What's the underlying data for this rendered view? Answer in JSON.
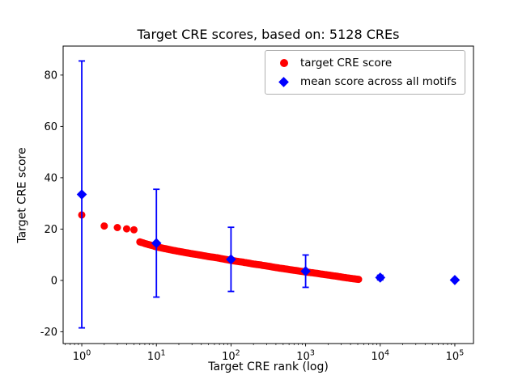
{
  "chart_data": {
    "type": "scatter",
    "title": "Target CRE scores, based on: 5128 CREs",
    "xlabel": "Target CRE rank (log)",
    "ylabel": "Target CRE score",
    "n_cres": 5128,
    "x_scale": "log",
    "xlim_log10": [
      -0.25,
      5.25
    ],
    "ylim": [
      -24.6,
      91.3
    ],
    "x_ticks_exponents": [
      0,
      1,
      2,
      3,
      4,
      5
    ],
    "y_ticks": [
      -20,
      0,
      20,
      40,
      60,
      80
    ],
    "grid": false,
    "legend_position": "upper right",
    "dense_interp_from_rank": 6,
    "series": [
      {
        "name": "target CRE score",
        "marker": "circle",
        "color": "#ff0000",
        "points": [
          [
            1,
            25.5
          ],
          [
            2,
            21.2
          ],
          [
            3,
            20.6
          ],
          [
            4,
            20.1
          ],
          [
            5,
            19.7
          ],
          [
            6,
            15.0
          ],
          [
            7,
            14.4
          ],
          [
            8,
            13.9
          ],
          [
            9,
            13.5
          ],
          [
            10,
            13.1
          ],
          [
            12,
            12.6
          ],
          [
            15,
            12.0
          ],
          [
            20,
            11.3
          ],
          [
            25,
            10.8
          ],
          [
            30,
            10.4
          ],
          [
            40,
            9.8
          ],
          [
            50,
            9.3
          ],
          [
            65,
            8.8
          ],
          [
            80,
            8.3
          ],
          [
            100,
            7.8
          ],
          [
            130,
            7.3
          ],
          [
            160,
            6.9
          ],
          [
            200,
            6.4
          ],
          [
            250,
            6.0
          ],
          [
            320,
            5.5
          ],
          [
            400,
            5.0
          ],
          [
            500,
            4.6
          ],
          [
            650,
            4.1
          ],
          [
            800,
            3.7
          ],
          [
            1000,
            3.3
          ],
          [
            1300,
            2.9
          ],
          [
            1600,
            2.5
          ],
          [
            2000,
            2.1
          ],
          [
            2500,
            1.7
          ],
          [
            3200,
            1.2
          ],
          [
            4000,
            0.8
          ],
          [
            5128,
            0.4
          ]
        ]
      },
      {
        "name": "mean score across all motifs",
        "marker": "diamond",
        "color": "#0000ff",
        "x": [
          1,
          10,
          100,
          1000,
          10000,
          100000
        ],
        "mean": [
          33.5,
          14.5,
          8.2,
          3.6,
          1.1,
          0.15
        ],
        "std": [
          52,
          21,
          12.5,
          6.3,
          0.9,
          0.1
        ]
      }
    ]
  }
}
